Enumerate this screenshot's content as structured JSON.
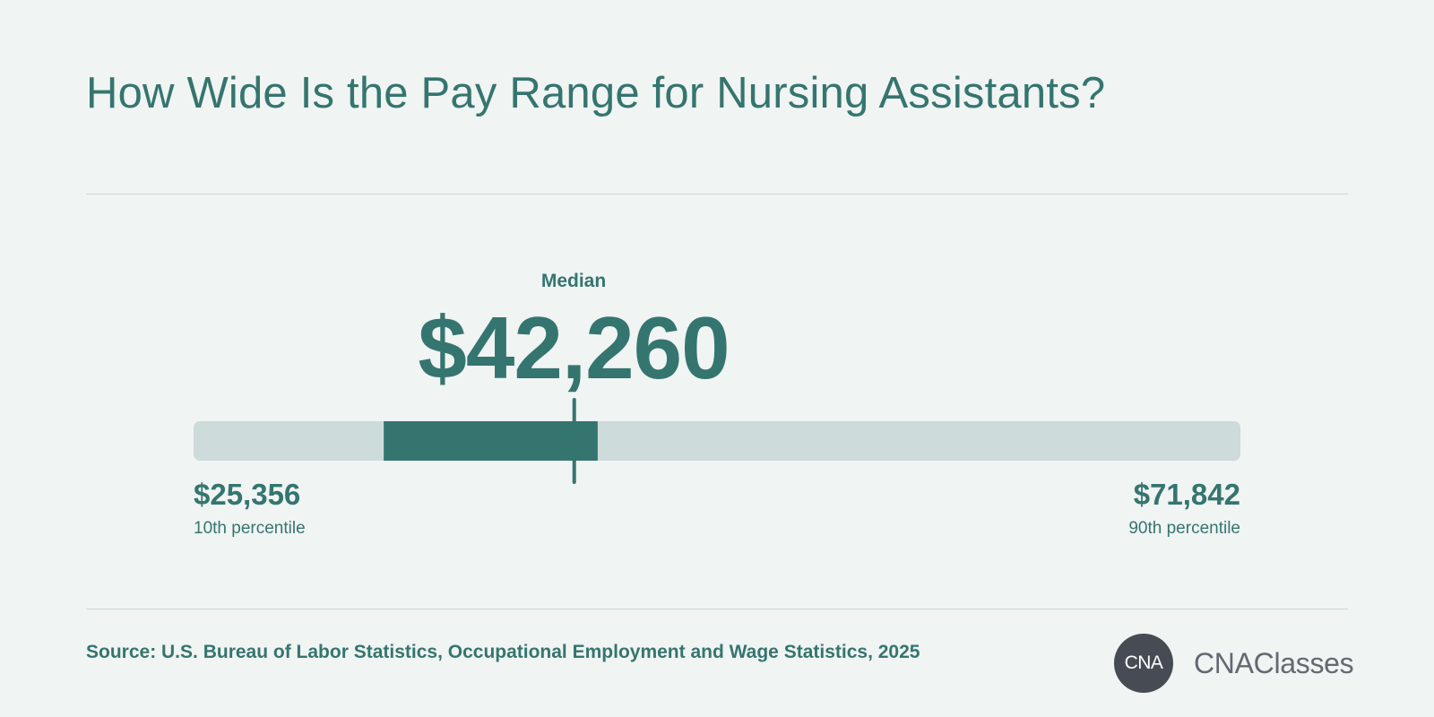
{
  "title": "How Wide Is the Pay Range for Nursing Assistants?",
  "chart_data": {
    "type": "range",
    "title": "How Wide Is the Pay Range for Nursing Assistants?",
    "min_label": "$25,356",
    "min_caption": "10th percentile",
    "max_label": "$71,842",
    "max_caption": "90th percentile",
    "median_label": "Median",
    "median_value_label": "$42,260",
    "p10": 25356,
    "p25": 33800,
    "median": 42260,
    "p75": 43300,
    "p90": 71842
  },
  "colors": {
    "accent": "#35756f",
    "track": "#cddcdb",
    "background": "#f0f4f3",
    "logo_dark": "#464b54"
  },
  "source": "Source: U.S. Bureau of Labor Statistics, Occupational Employment and Wage Statistics, 2025",
  "logo": {
    "badge_text": "CNA",
    "name": "CNAClasses"
  }
}
